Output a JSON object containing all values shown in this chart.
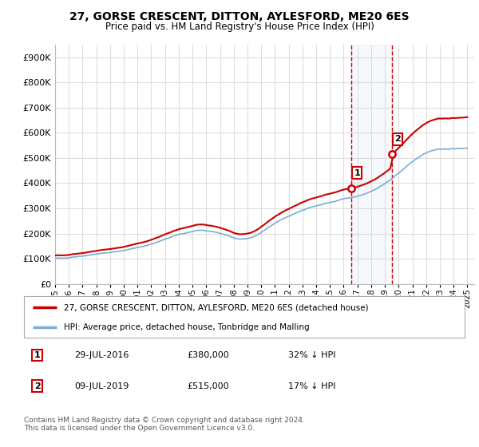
{
  "title": "27, GORSE CRESCENT, DITTON, AYLESFORD, ME20 6ES",
  "subtitle": "Price paid vs. HM Land Registry's House Price Index (HPI)",
  "ylim": [
    0,
    950000
  ],
  "yticks": [
    0,
    100000,
    200000,
    300000,
    400000,
    500000,
    600000,
    700000,
    800000,
    900000
  ],
  "ytick_labels": [
    "£0",
    "£100K",
    "£200K",
    "£300K",
    "£400K",
    "£500K",
    "£600K",
    "£700K",
    "£800K",
    "£900K"
  ],
  "xlim_start": 1995.0,
  "xlim_end": 2025.5,
  "sale1_date": 2016.57,
  "sale1_price": 380000,
  "sale1_label": "1",
  "sale2_date": 2019.52,
  "sale2_price": 515000,
  "sale2_label": "2",
  "red_line_color": "#cc0000",
  "blue_line_color": "#7aaed6",
  "dashed_color": "#cc0000",
  "span_color": "#c8dff0",
  "marker_fill": "#ffffff",
  "marker_border": "#cc0000",
  "legend_label_red": "27, GORSE CRESCENT, DITTON, AYLESFORD, ME20 6ES (detached house)",
  "legend_label_blue": "HPI: Average price, detached house, Tonbridge and Malling",
  "table_row1": [
    "1",
    "29-JUL-2016",
    "£380,000",
    "32% ↓ HPI"
  ],
  "table_row2": [
    "2",
    "09-JUL-2019",
    "£515,000",
    "17% ↓ HPI"
  ],
  "footer": "Contains HM Land Registry data © Crown copyright and database right 2024.\nThis data is licensed under the Open Government Licence v3.0.",
  "background_color": "#ffffff",
  "grid_color": "#dddddd"
}
